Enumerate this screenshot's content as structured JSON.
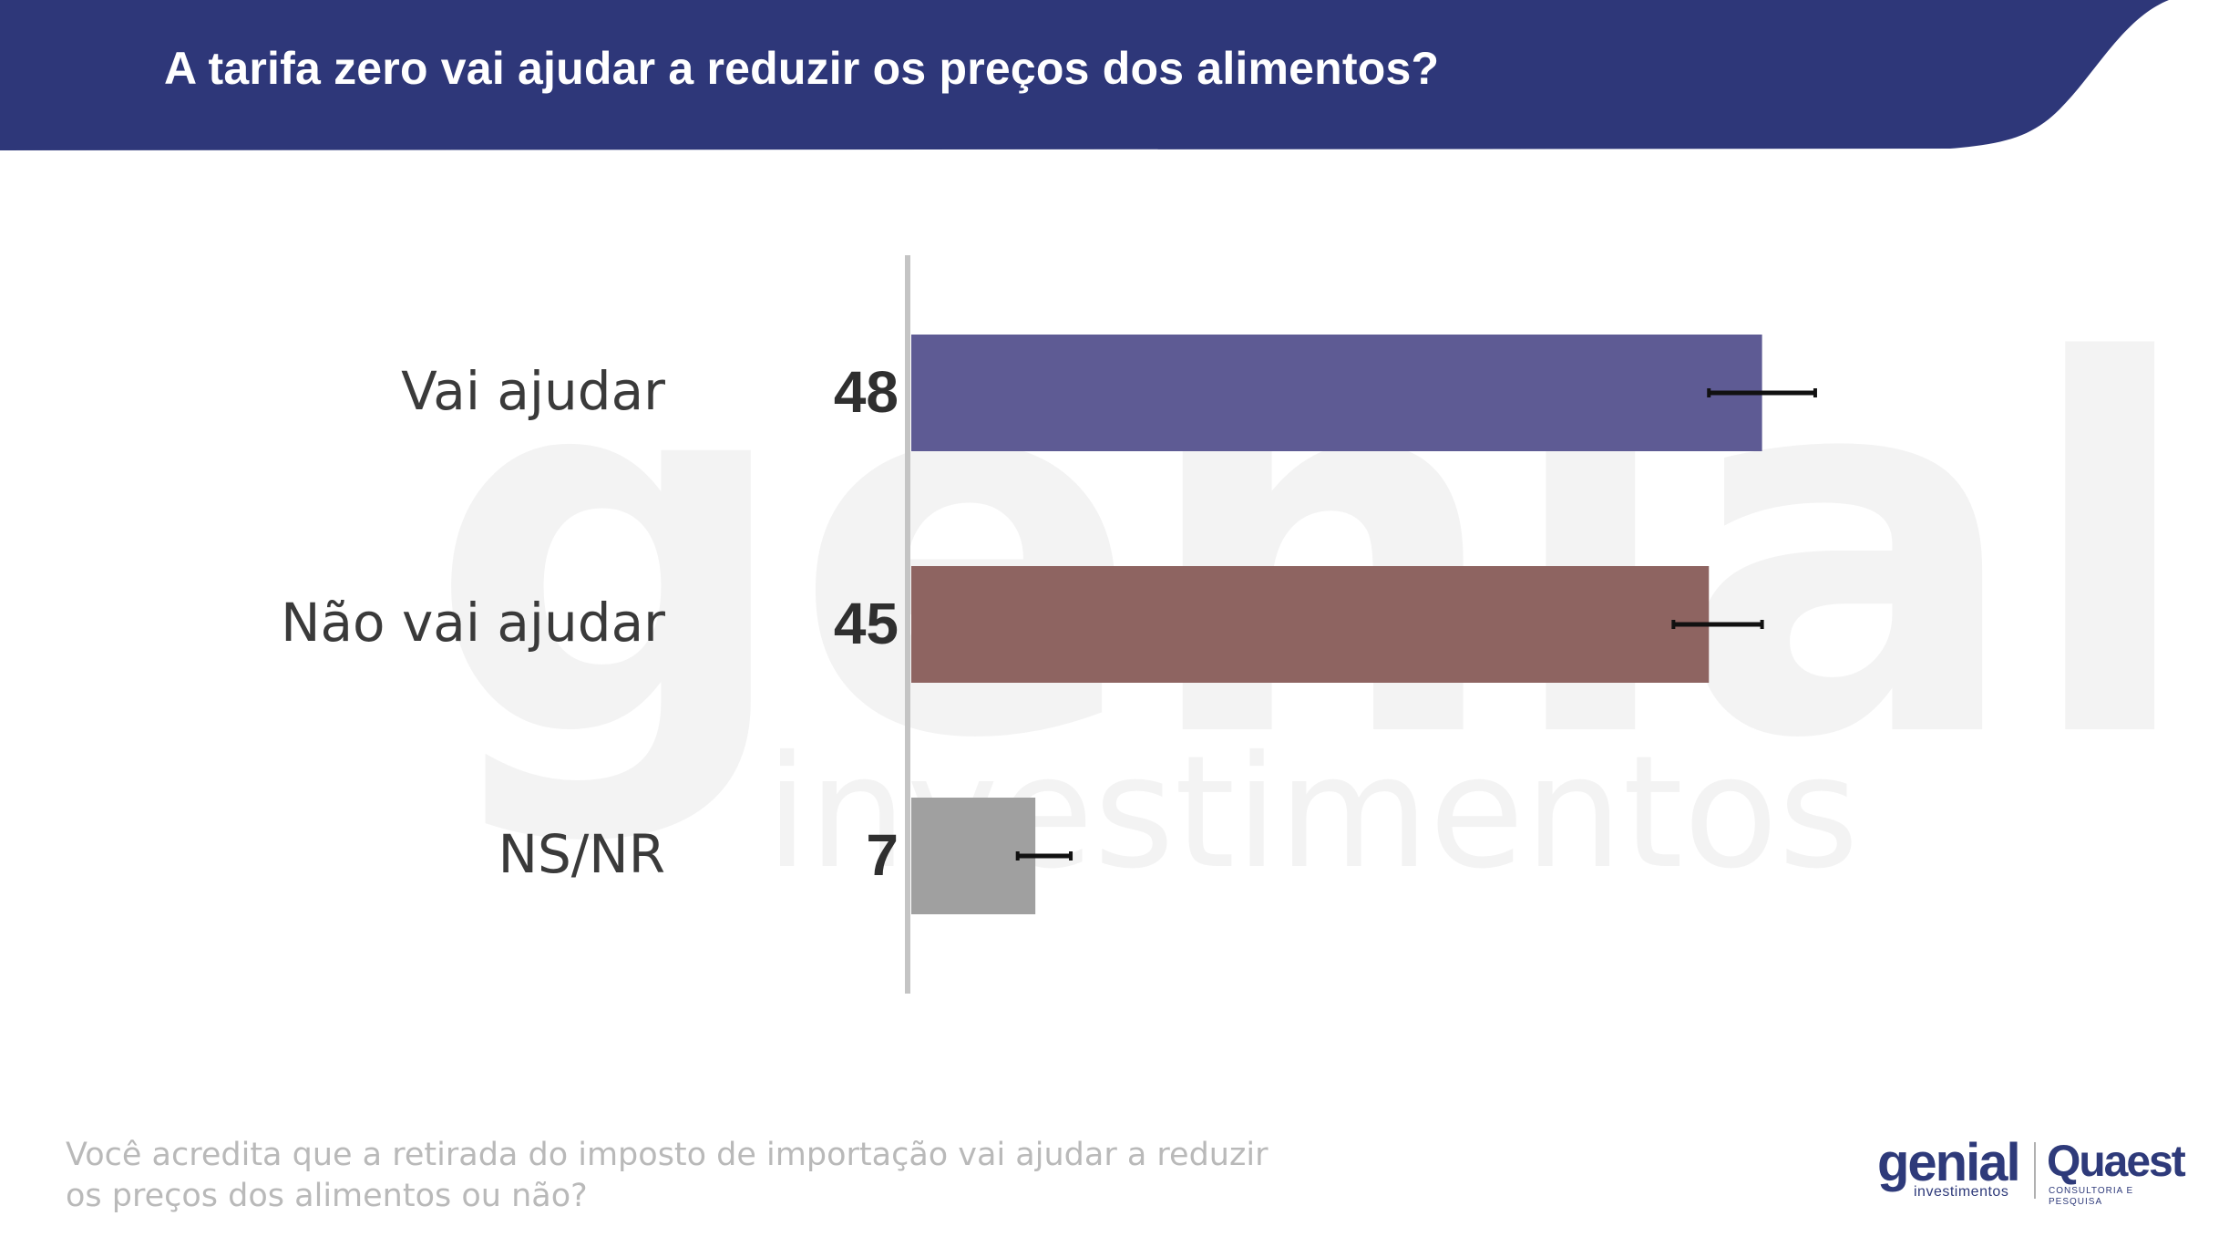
{
  "header": {
    "title": "A tarifa zero vai ajudar a reduzir os preços dos alimentos?",
    "color": "#2e3779"
  },
  "chart_data": {
    "type": "bar",
    "orientation": "horizontal",
    "categories": [
      "Vai ajudar",
      "Não vai ajudar",
      "NS/NR"
    ],
    "values": [
      48,
      45,
      7
    ],
    "value_labels": [
      "48",
      "45",
      "7"
    ],
    "colors": [
      "#5e5b94",
      "#8e6461",
      "#a0a0a0"
    ],
    "error_ranges": [
      [
        45,
        51
      ],
      [
        43,
        48
      ],
      [
        6,
        9
      ]
    ],
    "xlim": [
      0,
      55
    ],
    "title": "A tarifa zero vai ajudar a reduzir os preços dos alimentos?",
    "xlabel": "",
    "ylabel": "",
    "grid": false
  },
  "footer": {
    "question_line1": "Você acredita que a retirada do imposto de importação vai ajudar a reduzir",
    "question_line2": "os preços dos alimentos ou não?"
  },
  "logos": {
    "genial": "genial",
    "genial_sub": "investimentos",
    "quaest": "Quaest",
    "quaest_sub": "CONSULTORIA E PESQUISA",
    "watermark_main": "genial",
    "watermark_sub": "investimentos"
  }
}
